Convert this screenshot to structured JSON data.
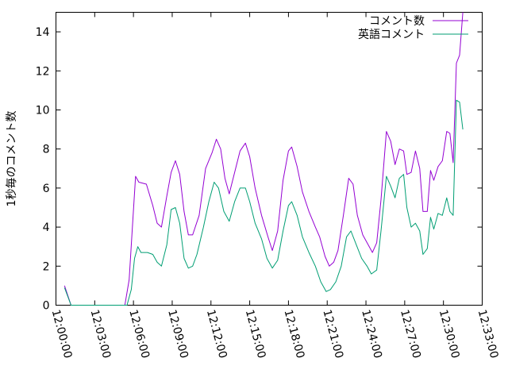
{
  "chart_data": {
    "type": "line",
    "title": "",
    "xlabel": "",
    "ylabel": "1秒毎のコメント数",
    "xlim": [
      "12:00:00",
      "12:33:00"
    ],
    "ylim": [
      0,
      15
    ],
    "grid": false,
    "legend_position": "top-right",
    "x_ticks": [
      "12:00:00",
      "12:03:00",
      "12:06:00",
      "12:09:00",
      "12:12:00",
      "12:15:00",
      "12:18:00",
      "12:21:00",
      "12:24:00",
      "12:27:00",
      "12:30:00",
      "12:33:00"
    ],
    "y_ticks": [
      0,
      2,
      4,
      6,
      8,
      10,
      12,
      14
    ],
    "series": [
      {
        "name": "コメント数",
        "color": "#9400d3",
        "points": [
          [
            "12:00:40",
            1.0
          ],
          [
            "12:01:10",
            0.0
          ],
          [
            "12:05:20",
            0.0
          ],
          [
            "12:05:40",
            1.3
          ],
          [
            "12:05:55",
            4.0
          ],
          [
            "12:06:10",
            6.6
          ],
          [
            "12:06:25",
            6.3
          ],
          [
            "12:07:00",
            6.2
          ],
          [
            "12:07:30",
            5.1
          ],
          [
            "12:07:50",
            4.2
          ],
          [
            "12:08:10",
            4.0
          ],
          [
            "12:08:35",
            5.6
          ],
          [
            "12:08:55",
            6.8
          ],
          [
            "12:09:15",
            7.4
          ],
          [
            "12:09:35",
            6.7
          ],
          [
            "12:09:55",
            4.8
          ],
          [
            "12:10:15",
            3.6
          ],
          [
            "12:10:35",
            3.6
          ],
          [
            "12:11:05",
            4.6
          ],
          [
            "12:11:35",
            7.0
          ],
          [
            "12:12:05",
            7.8
          ],
          [
            "12:12:25",
            8.5
          ],
          [
            "12:12:45",
            8.0
          ],
          [
            "12:13:05",
            6.5
          ],
          [
            "12:13:25",
            5.7
          ],
          [
            "12:13:50",
            6.8
          ],
          [
            "12:14:15",
            7.9
          ],
          [
            "12:14:40",
            8.3
          ],
          [
            "12:15:00",
            7.6
          ],
          [
            "12:15:25",
            6.0
          ],
          [
            "12:15:55",
            4.6
          ],
          [
            "12:16:25",
            3.5
          ],
          [
            "12:16:45",
            2.8
          ],
          [
            "12:17:10",
            3.8
          ],
          [
            "12:17:35",
            6.4
          ],
          [
            "12:18:00",
            7.9
          ],
          [
            "12:18:15",
            8.1
          ],
          [
            "12:18:40",
            7.1
          ],
          [
            "12:19:05",
            5.8
          ],
          [
            "12:19:35",
            4.8
          ],
          [
            "12:20:05",
            4.0
          ],
          [
            "12:20:25",
            3.5
          ],
          [
            "12:20:50",
            2.5
          ],
          [
            "12:21:10",
            2.0
          ],
          [
            "12:21:30",
            2.2
          ],
          [
            "12:21:50",
            2.8
          ],
          [
            "12:22:15",
            4.6
          ],
          [
            "12:22:40",
            6.5
          ],
          [
            "12:23:00",
            6.2
          ],
          [
            "12:23:20",
            4.6
          ],
          [
            "12:23:45",
            3.6
          ],
          [
            "12:24:10",
            3.1
          ],
          [
            "12:24:30",
            2.7
          ],
          [
            "12:24:50",
            3.2
          ],
          [
            "12:25:10",
            5.4
          ],
          [
            "12:25:35",
            8.9
          ],
          [
            "12:25:55",
            8.4
          ],
          [
            "12:26:15",
            7.2
          ],
          [
            "12:26:35",
            8.0
          ],
          [
            "12:26:55",
            7.9
          ],
          [
            "12:27:10",
            6.7
          ],
          [
            "12:27:30",
            6.8
          ],
          [
            "12:27:50",
            7.9
          ],
          [
            "12:28:10",
            7.0
          ],
          [
            "12:28:25",
            4.8
          ],
          [
            "12:28:45",
            4.8
          ],
          [
            "12:29:00",
            6.9
          ],
          [
            "12:29:15",
            6.4
          ],
          [
            "12:29:35",
            7.1
          ],
          [
            "12:29:55",
            7.4
          ],
          [
            "12:30:15",
            8.9
          ],
          [
            "12:30:30",
            8.8
          ],
          [
            "12:30:45",
            7.3
          ],
          [
            "12:31:00",
            12.4
          ],
          [
            "12:31:15",
            12.8
          ],
          [
            "12:31:30",
            15.0
          ]
        ]
      },
      {
        "name": "英語コメント",
        "color": "#009e73",
        "points": [
          [
            "12:00:40",
            0.9
          ],
          [
            "12:01:10",
            0.0
          ],
          [
            "12:05:30",
            0.0
          ],
          [
            "12:05:50",
            0.8
          ],
          [
            "12:06:05",
            2.4
          ],
          [
            "12:06:20",
            3.0
          ],
          [
            "12:06:35",
            2.7
          ],
          [
            "12:07:05",
            2.7
          ],
          [
            "12:07:30",
            2.6
          ],
          [
            "12:07:50",
            2.2
          ],
          [
            "12:08:10",
            2.0
          ],
          [
            "12:08:35",
            3.1
          ],
          [
            "12:08:55",
            4.9
          ],
          [
            "12:09:15",
            5.0
          ],
          [
            "12:09:35",
            4.2
          ],
          [
            "12:09:55",
            2.4
          ],
          [
            "12:10:15",
            1.9
          ],
          [
            "12:10:35",
            2.0
          ],
          [
            "12:10:55",
            2.6
          ],
          [
            "12:11:25",
            4.0
          ],
          [
            "12:11:50",
            5.3
          ],
          [
            "12:12:15",
            6.3
          ],
          [
            "12:12:35",
            6.0
          ],
          [
            "12:13:00",
            4.8
          ],
          [
            "12:13:25",
            4.3
          ],
          [
            "12:13:50",
            5.3
          ],
          [
            "12:14:15",
            6.0
          ],
          [
            "12:14:40",
            6.0
          ],
          [
            "12:15:00",
            5.3
          ],
          [
            "12:15:25",
            4.2
          ],
          [
            "12:15:55",
            3.4
          ],
          [
            "12:16:20",
            2.4
          ],
          [
            "12:16:45",
            1.9
          ],
          [
            "12:17:10",
            2.3
          ],
          [
            "12:17:35",
            3.8
          ],
          [
            "12:18:00",
            5.1
          ],
          [
            "12:18:15",
            5.3
          ],
          [
            "12:18:40",
            4.6
          ],
          [
            "12:19:05",
            3.5
          ],
          [
            "12:19:35",
            2.7
          ],
          [
            "12:20:05",
            2.0
          ],
          [
            "12:20:30",
            1.2
          ],
          [
            "12:20:55",
            0.7
          ],
          [
            "12:21:15",
            0.8
          ],
          [
            "12:21:40",
            1.2
          ],
          [
            "12:22:05",
            2.0
          ],
          [
            "12:22:30",
            3.5
          ],
          [
            "12:22:50",
            3.8
          ],
          [
            "12:23:15",
            3.1
          ],
          [
            "12:23:40",
            2.4
          ],
          [
            "12:24:05",
            2.0
          ],
          [
            "12:24:25",
            1.6
          ],
          [
            "12:24:50",
            1.8
          ],
          [
            "12:25:10",
            3.8
          ],
          [
            "12:25:35",
            6.6
          ],
          [
            "12:25:55",
            6.1
          ],
          [
            "12:26:15",
            5.5
          ],
          [
            "12:26:35",
            6.5
          ],
          [
            "12:26:55",
            6.7
          ],
          [
            "12:27:10",
            5.0
          ],
          [
            "12:27:30",
            4.0
          ],
          [
            "12:27:50",
            4.2
          ],
          [
            "12:28:10",
            3.8
          ],
          [
            "12:28:25",
            2.6
          ],
          [
            "12:28:45",
            2.9
          ],
          [
            "12:29:00",
            4.5
          ],
          [
            "12:29:15",
            3.9
          ],
          [
            "12:29:35",
            4.7
          ],
          [
            "12:29:55",
            4.6
          ],
          [
            "12:30:15",
            5.5
          ],
          [
            "12:30:30",
            4.8
          ],
          [
            "12:30:45",
            4.6
          ],
          [
            "12:31:00",
            10.5
          ],
          [
            "12:31:15",
            10.4
          ],
          [
            "12:31:30",
            9.0
          ]
        ]
      }
    ]
  }
}
